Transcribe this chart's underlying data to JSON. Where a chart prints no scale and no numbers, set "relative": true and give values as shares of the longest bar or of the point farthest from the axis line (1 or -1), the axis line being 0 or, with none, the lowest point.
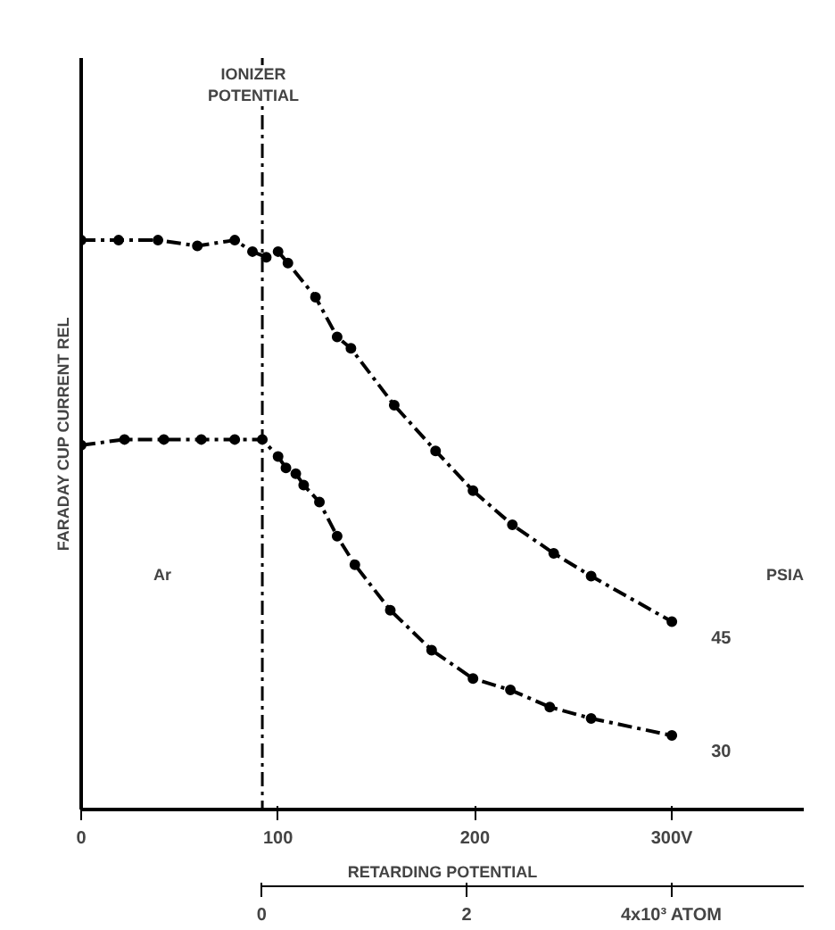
{
  "chart_data": {
    "type": "line",
    "relative": true,
    "xlabel": "RETARDING POTENTIAL",
    "ylabel": "FARADAY CUP CURRENT REL",
    "xlim": [
      0,
      367
    ],
    "xticks": [
      0,
      100,
      200,
      {
        "value": 300,
        "label": "300V"
      }
    ],
    "x2lim": [
      -1.76,
      5.29
    ],
    "x2ticks": [
      0,
      2,
      {
        "value": 4,
        "label": "4x10³ ATOM"
      }
    ],
    "ref_lines": [
      {
        "axis": "x",
        "value": 92,
        "label": "IONIZER POTENTIAL",
        "line_style": "dashed",
        "color": "#000000"
      }
    ],
    "annotations": [
      "Ar",
      "PSIA"
    ],
    "marker": "circle",
    "line_style": "dashed",
    "grid": false,
    "series": [
      {
        "name": "45",
        "color": "#000000",
        "x": [
          0,
          19,
          39,
          59,
          78,
          87,
          94,
          100,
          105,
          119,
          130,
          137,
          159,
          180,
          199,
          219,
          240,
          259,
          300
        ],
        "values": [
          1.0,
          1.0,
          1.0,
          0.99,
          1.0,
          0.98,
          0.97,
          0.98,
          0.96,
          0.9,
          0.83,
          0.81,
          0.71,
          0.63,
          0.56,
          0.5,
          0.45,
          0.41,
          0.33
        ]
      },
      {
        "name": "30",
        "color": "#000000",
        "x": [
          0,
          22,
          42,
          61,
          78,
          92,
          100,
          104,
          109,
          113,
          121,
          130,
          139,
          157,
          178,
          199,
          218,
          238,
          259,
          300
        ],
        "values": [
          0.64,
          0.65,
          0.65,
          0.65,
          0.65,
          0.65,
          0.62,
          0.6,
          0.59,
          0.57,
          0.54,
          0.48,
          0.43,
          0.35,
          0.28,
          0.23,
          0.21,
          0.18,
          0.16,
          0.13
        ]
      }
    ]
  }
}
